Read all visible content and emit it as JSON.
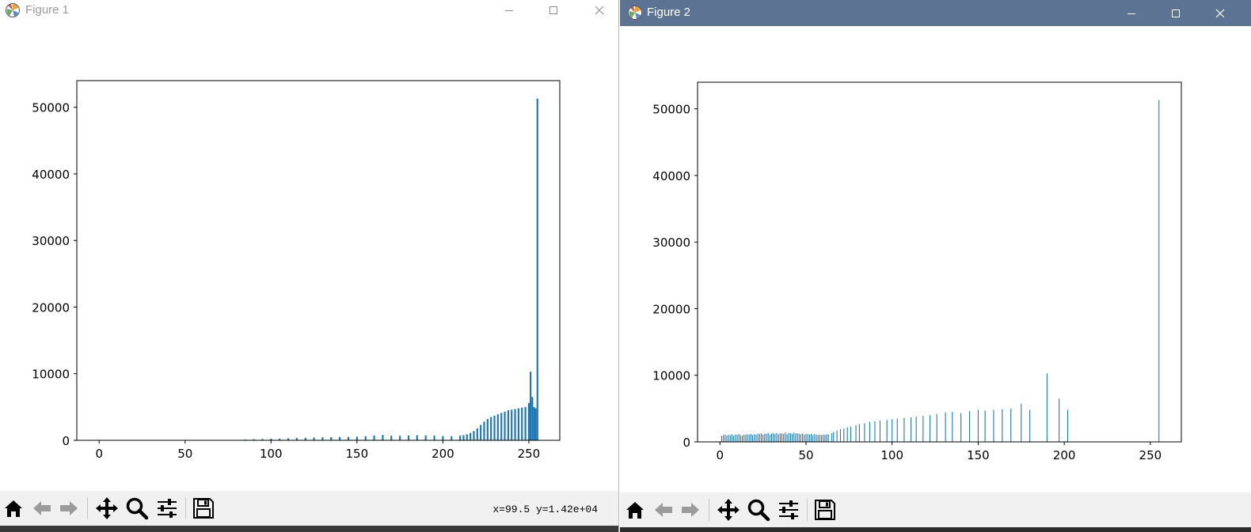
{
  "windows": [
    {
      "title": "Figure 1",
      "controls": {
        "minimize": "minimize",
        "maximize": "maximize",
        "close": "close"
      },
      "toolbar": {
        "buttons": [
          "home",
          "back",
          "forward",
          "pan",
          "zoom",
          "configure-subplots",
          "save"
        ],
        "status": "x=99.5 y=1.42e+04"
      }
    },
    {
      "title": "Figure 2",
      "controls": {
        "minimize": "minimize",
        "maximize": "maximize",
        "close": "close"
      },
      "toolbar": {
        "buttons": [
          "home",
          "back",
          "forward",
          "pan",
          "zoom",
          "configure-subplots",
          "save"
        ],
        "status": ""
      }
    }
  ],
  "colors": {
    "bar": "#1f77b4",
    "titlebar_active": "#5d7394",
    "toolbar_bg": "#f0f0f0"
  },
  "chart_data": [
    {
      "type": "bar",
      "title": "",
      "xlabel": "",
      "ylabel": "",
      "xlim": [
        -13,
        268
      ],
      "ylim": [
        0,
        54000
      ],
      "xticks": [
        0,
        50,
        100,
        150,
        200,
        250
      ],
      "yticks": [
        0,
        10000,
        20000,
        30000,
        40000,
        50000
      ],
      "grid": false,
      "bin_width": 1,
      "x": [
        80,
        85,
        90,
        95,
        100,
        105,
        110,
        115,
        120,
        125,
        130,
        135,
        140,
        145,
        150,
        155,
        160,
        165,
        170,
        175,
        180,
        185,
        190,
        195,
        200,
        205,
        210,
        212,
        214,
        216,
        218,
        220,
        222,
        224,
        226,
        228,
        230,
        232,
        234,
        236,
        238,
        240,
        242,
        244,
        246,
        248,
        250,
        251,
        252,
        253,
        254,
        255
      ],
      "values": [
        60,
        120,
        160,
        200,
        240,
        260,
        300,
        350,
        380,
        420,
        460,
        480,
        500,
        520,
        560,
        620,
        720,
        800,
        700,
        680,
        720,
        760,
        740,
        700,
        650,
        620,
        700,
        780,
        900,
        1100,
        1400,
        1800,
        2300,
        2800,
        3200,
        3500,
        3700,
        3900,
        4100,
        4300,
        4500,
        4600,
        4700,
        4800,
        4900,
        5000,
        5600,
        10300,
        6500,
        5000,
        4800,
        51300
      ]
    },
    {
      "type": "bar",
      "title": "",
      "xlabel": "",
      "ylabel": "",
      "xlim": [
        -13,
        268
      ],
      "ylim": [
        0,
        54000
      ],
      "xticks": [
        0,
        50,
        100,
        150,
        200,
        250
      ],
      "yticks": [
        0,
        10000,
        20000,
        30000,
        40000,
        50000
      ],
      "grid": false,
      "bin_width": 0.5,
      "x": [
        1,
        2,
        3,
        4,
        5,
        6,
        7,
        8,
        9,
        10,
        11,
        12,
        13,
        14,
        15,
        16,
        17,
        18,
        19,
        20,
        21,
        22,
        23,
        24,
        25,
        26,
        27,
        28,
        29,
        30,
        31,
        32,
        33,
        34,
        35,
        36,
        37,
        38,
        39,
        40,
        41,
        42,
        43,
        44,
        45,
        46,
        47,
        48,
        49,
        50,
        51,
        52,
        53,
        54,
        55,
        56,
        57,
        58,
        59,
        60,
        61,
        62,
        63,
        65,
        66,
        68,
        70,
        72,
        74,
        76,
        79,
        81,
        84,
        87,
        90,
        93,
        97,
        100,
        103,
        107,
        111,
        114,
        118,
        122,
        126,
        131,
        135,
        140,
        145,
        150,
        154,
        159,
        164,
        169,
        175,
        180,
        190,
        197,
        202,
        255
      ],
      "values": [
        900,
        1000,
        1100,
        950,
        1050,
        1000,
        1150,
        900,
        1100,
        1050,
        1200,
        1000,
        950,
        1100,
        1050,
        1150,
        1100,
        1200,
        1000,
        1150,
        1100,
        1250,
        1200,
        1300,
        1100,
        1250,
        1200,
        1350,
        1100,
        1250,
        1300,
        1200,
        1350,
        1150,
        1300,
        1250,
        1200,
        1400,
        1150,
        1350,
        1300,
        1200,
        1400,
        1250,
        1300,
        1200,
        1150,
        1250,
        1100,
        1200,
        1150,
        1100,
        1200,
        1050,
        1150,
        1100,
        1050,
        1100,
        1000,
        1100,
        1050,
        1150,
        1100,
        1300,
        1500,
        1700,
        1900,
        2000,
        2200,
        2300,
        2500,
        2700,
        2800,
        3000,
        3100,
        3200,
        3300,
        3400,
        3500,
        3600,
        3700,
        3800,
        3900,
        4000,
        4200,
        4400,
        4500,
        4300,
        4600,
        4800,
        4700,
        4800,
        4900,
        5000,
        5700,
        4800,
        10300,
        6500,
        4800,
        51300
      ]
    }
  ]
}
